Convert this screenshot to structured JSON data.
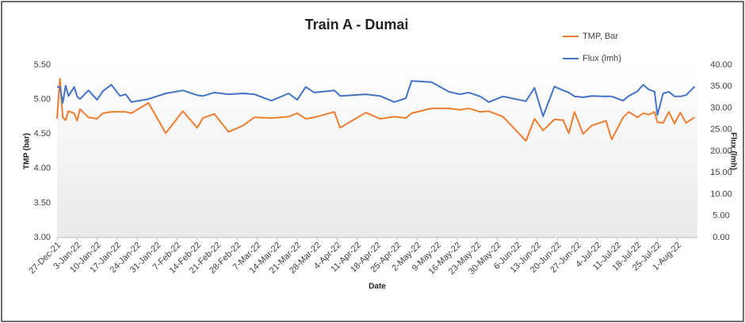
{
  "chart_data": {
    "type": "line",
    "title": "Train A - Dumai",
    "x_label": "Date",
    "y_label": "TMP (bar)",
    "y2_label": "Flux (lmh)",
    "x": [
      "2021-12-27",
      "2021-12-28",
      "2021-12-29",
      "2021-12-30",
      "2021-12-31",
      "2022-01-02",
      "2022-01-03",
      "2022-01-04",
      "2022-01-07",
      "2022-01-10",
      "2022-01-12",
      "2022-01-15",
      "2022-01-18",
      "2022-01-20",
      "2022-01-22",
      "2022-01-28",
      "2022-02-03",
      "2022-02-09",
      "2022-02-14",
      "2022-02-16",
      "2022-02-20",
      "2022-02-25",
      "2022-03-02",
      "2022-03-06",
      "2022-03-12",
      "2022-03-18",
      "2022-03-21",
      "2022-03-24",
      "2022-03-27",
      "2022-04-03",
      "2022-04-05",
      "2022-04-14",
      "2022-04-19",
      "2022-04-24",
      "2022-04-28",
      "2022-04-30",
      "2022-05-07",
      "2022-05-13",
      "2022-05-17",
      "2022-05-20",
      "2022-05-24",
      "2022-05-27",
      "2022-06-01",
      "2022-06-09",
      "2022-06-12",
      "2022-06-15",
      "2022-06-19",
      "2022-06-22",
      "2022-06-24",
      "2022-06-26",
      "2022-06-29",
      "2022-07-02",
      "2022-07-07",
      "2022-07-09",
      "2022-07-13",
      "2022-07-15",
      "2022-07-18",
      "2022-07-20",
      "2022-07-22",
      "2022-07-24",
      "2022-07-25",
      "2022-07-27",
      "2022-07-29",
      "2022-07-31",
      "2022-08-02",
      "2022-08-04",
      "2022-08-07"
    ],
    "series": [
      {
        "name": "TMP, Bar",
        "color": "#ed7d31",
        "values": [
          4.72,
          5.3,
          4.74,
          4.7,
          4.83,
          4.8,
          4.69,
          4.86,
          4.74,
          4.72,
          4.8,
          4.82,
          4.82,
          4.82,
          4.8,
          4.95,
          4.51,
          4.83,
          4.59,
          4.73,
          4.79,
          4.53,
          4.62,
          4.74,
          4.73,
          4.75,
          4.8,
          4.72,
          4.74,
          4.82,
          4.59,
          4.81,
          4.72,
          4.75,
          4.73,
          4.8,
          4.87,
          4.87,
          4.85,
          4.87,
          4.82,
          4.83,
          4.75,
          4.4,
          4.72,
          4.55,
          4.71,
          4.7,
          4.51,
          4.82,
          4.5,
          4.62,
          4.69,
          4.42,
          4.74,
          4.82,
          4.74,
          4.8,
          4.78,
          4.82,
          4.67,
          4.66,
          4.82,
          4.65,
          4.81,
          4.66,
          4.74
        ]
      },
      {
        "name": "Flux (lmh)",
        "color": "#4472c4",
        "axis": "y2",
        "values": [
          34.9,
          34.9,
          31.2,
          35.2,
          32.8,
          34.9,
          32.7,
          32.1,
          34.1,
          31.9,
          33.9,
          35.4,
          32.8,
          33.2,
          31.4,
          32.1,
          33.4,
          34.1,
          33.0,
          32.8,
          33.6,
          33.2,
          33.4,
          33.2,
          31.7,
          33.4,
          31.9,
          34.9,
          33.6,
          34.1,
          32.8,
          33.2,
          32.8,
          31.4,
          32.3,
          36.3,
          36.0,
          33.8,
          33.2,
          33.6,
          32.7,
          31.4,
          32.7,
          31.6,
          34.7,
          28.1,
          35.0,
          34.1,
          33.6,
          32.7,
          32.5,
          32.8,
          32.7,
          32.7,
          31.7,
          32.8,
          33.9,
          35.4,
          34.3,
          33.8,
          28.4,
          33.4,
          33.8,
          32.7,
          32.7,
          33.0,
          35.0
        ]
      }
    ],
    "xlim": [
      "2021-12-27",
      "2022-08-08"
    ],
    "xticks": [
      {
        "value": "2021-12-27",
        "label": "27-Dec-21"
      },
      {
        "value": "2022-01-03",
        "label": "3-Jan-22"
      },
      {
        "value": "2022-01-10",
        "label": "10-Jan-22"
      },
      {
        "value": "2022-01-17",
        "label": "17-Jan-22"
      },
      {
        "value": "2022-01-24",
        "label": "24-Jan-22"
      },
      {
        "value": "2022-01-31",
        "label": "31-Jan-22"
      },
      {
        "value": "2022-02-07",
        "label": "7-Feb-22"
      },
      {
        "value": "2022-02-14",
        "label": "14-Feb-22"
      },
      {
        "value": "2022-02-21",
        "label": "21-Feb-22"
      },
      {
        "value": "2022-02-28",
        "label": "28-Feb-22"
      },
      {
        "value": "2022-03-07",
        "label": "7-Mar-22"
      },
      {
        "value": "2022-03-14",
        "label": "14-Mar-22"
      },
      {
        "value": "2022-03-21",
        "label": "21-Mar-22"
      },
      {
        "value": "2022-03-28",
        "label": "28-Mar-22"
      },
      {
        "value": "2022-04-04",
        "label": "4-Apr-22"
      },
      {
        "value": "2022-04-11",
        "label": "11-Apr-22"
      },
      {
        "value": "2022-04-18",
        "label": "18-Apr-22"
      },
      {
        "value": "2022-04-25",
        "label": "25-Apr-22"
      },
      {
        "value": "2022-05-02",
        "label": "2-May-22"
      },
      {
        "value": "2022-05-09",
        "label": "9-May-22"
      },
      {
        "value": "2022-05-16",
        "label": "16-May-22"
      },
      {
        "value": "2022-05-23",
        "label": "23-May-22"
      },
      {
        "value": "2022-05-30",
        "label": "30-May-22"
      },
      {
        "value": "2022-06-06",
        "label": "6-Jun-22"
      },
      {
        "value": "2022-06-13",
        "label": "13-Jun-22"
      },
      {
        "value": "2022-06-20",
        "label": "20-Jun-22"
      },
      {
        "value": "2022-06-27",
        "label": "27-Jun-22"
      },
      {
        "value": "2022-07-04",
        "label": "4-Jul-22"
      },
      {
        "value": "2022-07-11",
        "label": "11-Jul-22"
      },
      {
        "value": "2022-07-18",
        "label": "18-Jul-22"
      },
      {
        "value": "2022-07-25",
        "label": "25-Jul-22"
      },
      {
        "value": "2022-08-01",
        "label": "1-Aug-22"
      }
    ],
    "ylim": [
      3,
      5.5
    ],
    "yticks": [
      {
        "value": 3,
        "label": "3.00"
      },
      {
        "value": 3.5,
        "label": "3.50"
      },
      {
        "value": 4,
        "label": "4.00"
      },
      {
        "value": 4.5,
        "label": "4.50"
      },
      {
        "value": 5,
        "label": "5.00"
      },
      {
        "value": 5.5,
        "label": "5.50"
      }
    ],
    "y2lim": [
      0,
      40
    ],
    "y2ticks": [
      {
        "value": 0,
        "label": "0.00"
      },
      {
        "value": 5,
        "label": "5.00"
      },
      {
        "value": 10,
        "label": "10.00"
      },
      {
        "value": 15,
        "label": "15.00"
      },
      {
        "value": 20,
        "label": "20.00"
      },
      {
        "value": 25,
        "label": "25.00"
      },
      {
        "value": 30,
        "label": "30.00"
      },
      {
        "value": 35,
        "label": "35.00"
      },
      {
        "value": 40,
        "label": "40.00"
      }
    ],
    "legend": "top-right"
  }
}
